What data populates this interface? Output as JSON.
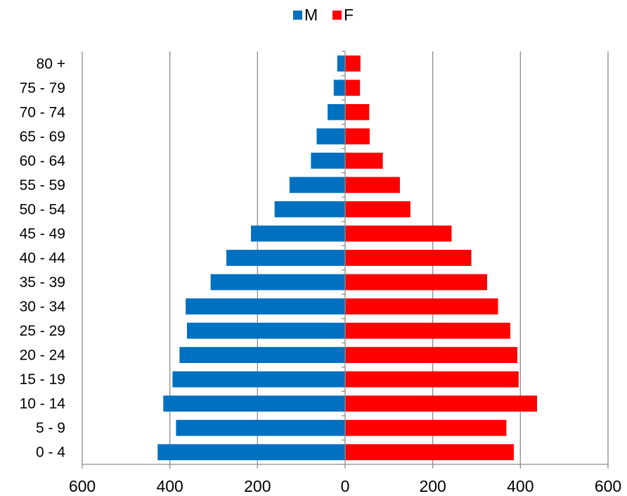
{
  "chart_data": {
    "type": "bar",
    "orientation": "horizontal",
    "layout": "population-pyramid",
    "categories": [
      "0 - 4",
      "5 - 9",
      "10 - 14",
      "15 - 19",
      "20 - 24",
      "25 - 29",
      "30 - 34",
      "35 - 39",
      "40 - 44",
      "45 - 49",
      "50 - 54",
      "55 - 59",
      "60 - 64",
      "65 - 69",
      "70 - 74",
      "75 - 79",
      "80 +"
    ],
    "series": [
      {
        "name": "M",
        "color": "#0070C0",
        "direction": "left",
        "values": [
          428,
          386,
          415,
          394,
          378,
          361,
          364,
          307,
          271,
          215,
          161,
          127,
          78,
          65,
          40,
          26,
          18
        ]
      },
      {
        "name": "F",
        "color": "#FF0000",
        "direction": "right",
        "values": [
          385,
          368,
          438,
          396,
          393,
          377,
          349,
          324,
          288,
          243,
          149,
          125,
          86,
          56,
          55,
          34,
          35
        ]
      }
    ],
    "xlim": [
      -600,
      600
    ],
    "xticks": [
      -600,
      -400,
      -200,
      0,
      200,
      400,
      600
    ],
    "xtick_labels": [
      "600",
      "400",
      "200",
      "0",
      "200",
      "400",
      "600"
    ],
    "title": "",
    "xlabel": "",
    "ylabel": "",
    "grid": "vertical",
    "legend": "top-center"
  }
}
